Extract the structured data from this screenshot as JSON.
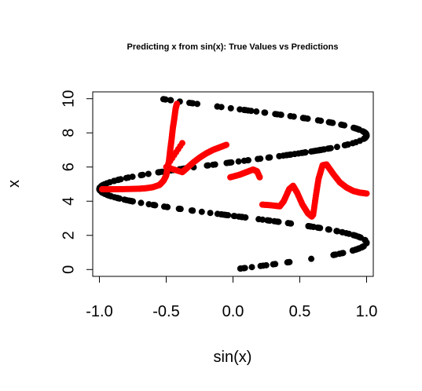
{
  "chart_data": {
    "type": "scatter",
    "title": "Predicting x from sin(x): True Values vs Predictions",
    "xlabel": "sin(x)",
    "ylabel": "x",
    "xlim": [
      -1.05,
      1.05
    ],
    "ylim": [
      -0.4,
      10.4
    ],
    "xticks": [
      "-1.0",
      "-0.5",
      "0.0",
      "0.5",
      "1.0"
    ],
    "yticks": [
      "0",
      "2",
      "4",
      "6",
      "8",
      "10"
    ],
    "grid": false,
    "legend": "none",
    "series": [
      {
        "color": "#000000",
        "description": "true values",
        "function": "sin",
        "x_from": 0,
        "x_to": 10,
        "count": 300
      },
      {
        "color": "#ff0000",
        "description": "predictions",
        "points": [
          [
            -0.98,
            4.7
          ],
          [
            -0.9,
            4.7
          ],
          [
            -0.8,
            4.71
          ],
          [
            -0.7,
            4.73
          ],
          [
            -0.65,
            4.76
          ],
          [
            -0.6,
            4.82
          ],
          [
            -0.55,
            4.95
          ],
          [
            -0.52,
            5.2
          ],
          [
            -0.5,
            5.5
          ],
          [
            -0.49,
            5.9
          ],
          [
            -0.48,
            6.3
          ],
          [
            -0.47,
            7.0
          ],
          [
            -0.46,
            7.6
          ],
          [
            -0.45,
            8.3
          ],
          [
            -0.44,
            8.8
          ],
          [
            -0.43,
            9.4
          ],
          [
            -0.42,
            9.7
          ],
          [
            -0.38,
            7.4
          ],
          [
            -0.5,
            6.0
          ],
          [
            -0.38,
            5.7
          ],
          [
            -0.35,
            5.9
          ],
          [
            -0.3,
            6.25
          ],
          [
            -0.25,
            6.55
          ],
          [
            -0.2,
            6.8
          ],
          [
            -0.15,
            7.0
          ],
          [
            -0.1,
            7.15
          ],
          [
            -0.05,
            7.3
          ],
          [
            -0.02,
            5.4
          ],
          [
            0.05,
            5.55
          ],
          [
            0.1,
            5.7
          ],
          [
            0.15,
            5.85
          ],
          [
            0.18,
            5.75
          ],
          [
            0.2,
            5.4
          ],
          [
            0.22,
            3.8
          ],
          [
            0.3,
            3.75
          ],
          [
            0.35,
            3.7
          ],
          [
            0.38,
            4.0
          ],
          [
            0.42,
            4.7
          ],
          [
            0.45,
            4.9
          ],
          [
            0.48,
            4.5
          ],
          [
            0.52,
            3.8
          ],
          [
            0.56,
            3.3
          ],
          [
            0.59,
            3.1
          ],
          [
            0.6,
            3.2
          ],
          [
            0.62,
            4.3
          ],
          [
            0.64,
            5.3
          ],
          [
            0.67,
            6.1
          ],
          [
            0.7,
            6.15
          ],
          [
            0.75,
            5.6
          ],
          [
            0.8,
            5.1
          ],
          [
            0.85,
            4.8
          ],
          [
            0.9,
            4.6
          ],
          [
            0.95,
            4.5
          ],
          [
            1.0,
            4.45
          ]
        ]
      }
    ]
  }
}
